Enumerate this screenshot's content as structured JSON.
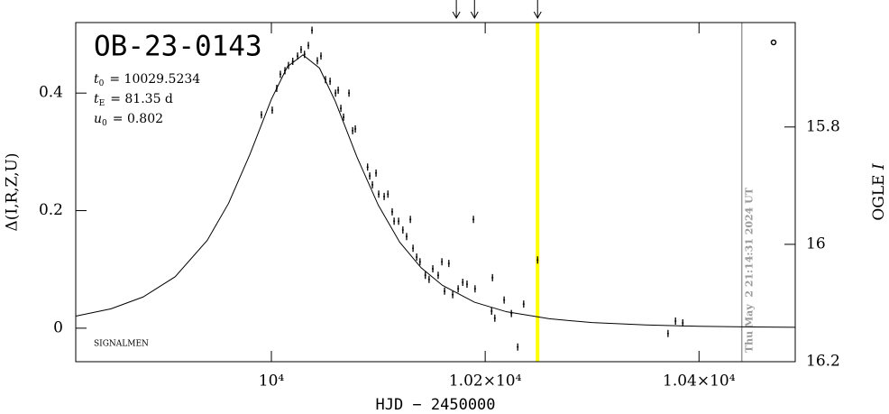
{
  "chart_data": {
    "type": "scatter",
    "title": "OB-23-0143",
    "params": [
      {
        "symbol": "t",
        "subscript": "0",
        "text": "= 10029.5234"
      },
      {
        "symbol": "t",
        "subscript": "E",
        "text": "= 81.35 d"
      },
      {
        "symbol": "u",
        "subscript": "0",
        "text": "= 0.802"
      }
    ],
    "note": "SIGNALMEN",
    "timestamp": "Thu May  2 21:14:31 2024 UT",
    "xlabel": "HJD − 2450000",
    "ylabel": "Δ(I,R,Z,U)",
    "y2label": {
      "text": "OGLE ",
      "italic": "I"
    },
    "xlim": [
      9817,
      10490
    ],
    "ylim": [
      -0.057,
      0.52
    ],
    "y2lim": [
      16.2,
      15.622
    ],
    "xticks": [
      {
        "value": 10000,
        "label": "10⁴"
      },
      {
        "value": 10200,
        "label": "1.02×10⁴"
      },
      {
        "value": 10400,
        "label": "1.04×10⁴"
      }
    ],
    "yticks": [
      0,
      0.2,
      0.4
    ],
    "y2ticks": [
      15.8,
      16,
      16.2
    ],
    "current_line": {
      "x": 10249,
      "color": "#ffff00"
    },
    "now_line": {
      "x": 10440,
      "color": "#999999"
    },
    "arrows": [
      10173,
      10190,
      10249
    ],
    "points": {
      "color": "#000000",
      "x": [
        9990.7,
        10000.8,
        10005,
        10008.4,
        10012.7,
        10016,
        10020,
        10024.5,
        10027.8,
        10031,
        10034.6,
        10038,
        10043,
        10046.4,
        10050.6,
        10054.9,
        10060,
        10062.5,
        10065,
        10067.5,
        10072.6,
        10076,
        10078.5,
        10090,
        10092,
        10094.5,
        10097.9,
        10100.4,
        10105.5,
        10109,
        10113,
        10114.8,
        10119,
        10123,
        10126.5,
        10130,
        10132.5,
        10135.9,
        10139,
        10144,
        10147.5,
        10151,
        10156,
        10159.5,
        10162,
        10166,
        10169.6,
        10174.7,
        10179,
        10183,
        10189,
        10190.5,
        10206.8,
        10206,
        10209,
        10217.7,
        10224.5,
        10230.4,
        10236,
        10249,
        10371,
        10378,
        10384.8
      ],
      "values": [
        0.363,
        0.371,
        0.408,
        0.432,
        0.438,
        0.447,
        0.454,
        0.463,
        0.474,
        0.466,
        0.481,
        0.507,
        0.455,
        0.463,
        0.423,
        0.42,
        0.4,
        0.405,
        0.374,
        0.359,
        0.4,
        0.336,
        0.339,
        0.274,
        0.259,
        0.244,
        0.264,
        0.228,
        0.224,
        0.228,
        0.198,
        0.182,
        0.182,
        0.167,
        0.156,
        0.185,
        0.136,
        0.121,
        0.113,
        0.09,
        0.083,
        0.101,
        0.09,
        0.113,
        0.063,
        0.11,
        0.057,
        0.067,
        0.078,
        0.075,
        0.185,
        0.067,
        0.086,
        0.029,
        0.017,
        0.048,
        0.025,
        -0.032,
        0.041,
        0.116,
        -0.009,
        0.012,
        0.009
      ]
    },
    "model": {
      "color": "#000000",
      "x": [
        9817,
        9850,
        9880,
        9910,
        9940,
        9960,
        9980,
        10000,
        10015,
        10029.5,
        10045,
        10060,
        10080,
        10100,
        10120,
        10140,
        10160,
        10190,
        10220,
        10260,
        10300,
        10350,
        10400,
        10450,
        10490
      ],
      "values": [
        0.0205,
        0.033,
        0.0531,
        0.0875,
        0.1495,
        0.2126,
        0.296,
        0.3895,
        0.445,
        0.465,
        0.4425,
        0.385,
        0.2915,
        0.2094,
        0.1464,
        0.1029,
        0.0729,
        0.0442,
        0.0279,
        0.016,
        0.0095,
        0.0055,
        0.0032,
        0.002,
        0.0015
      ]
    }
  }
}
